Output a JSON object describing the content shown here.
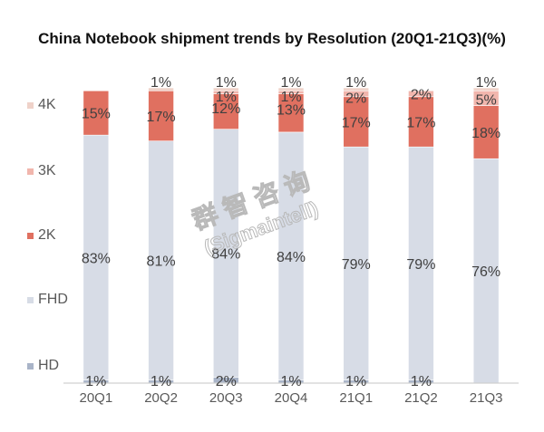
{
  "chart_data": {
    "type": "bar",
    "stacked": true,
    "title": "China Notebook shipment trends by Resolution (20Q1-21Q3)(%)",
    "xlabel": "",
    "ylabel": "",
    "ylim": [
      0,
      100
    ],
    "grid": false,
    "legend_position": "left",
    "categories": [
      "20Q1",
      "20Q2",
      "20Q3",
      "20Q4",
      "21Q1",
      "21Q2",
      "21Q3"
    ],
    "series": [
      {
        "name": "HD",
        "color": "#a9b4c8",
        "values": [
          1,
          1,
          2,
          1,
          1,
          1,
          0
        ]
      },
      {
        "name": "FHD",
        "color": "#d7dce6",
        "values": [
          83,
          81,
          84,
          84,
          79,
          79,
          76
        ]
      },
      {
        "name": "2K",
        "color": "#e07060",
        "values": [
          15,
          17,
          12,
          13,
          17,
          17,
          18
        ]
      },
      {
        "name": "3K",
        "color": "#f1b6ad",
        "values": [
          0,
          0,
          1,
          1,
          2,
          2,
          5
        ]
      },
      {
        "name": "4K",
        "color": "#efd2c9",
        "values": [
          0,
          1,
          1,
          1,
          1,
          0,
          1
        ]
      }
    ],
    "data_labels": [
      {
        "series": "HD",
        "labels": [
          "1%",
          "1%",
          "2%",
          "1%",
          "1%",
          "1%",
          ""
        ]
      },
      {
        "series": "FHD",
        "labels": [
          "83%",
          "81%",
          "84%",
          "84%",
          "79%",
          "79%",
          "76%"
        ]
      },
      {
        "series": "2K",
        "labels": [
          "15%",
          "17%",
          "12%",
          "13%",
          "17%",
          "17%",
          "18%"
        ]
      },
      {
        "series": "3K",
        "labels": [
          "",
          "",
          "1%",
          "1%",
          "2%",
          "2%",
          "5%"
        ]
      },
      {
        "series": "4K",
        "labels": [
          "",
          "1%",
          "1%",
          "1%",
          "1%",
          "",
          "1%"
        ]
      }
    ],
    "legend": [
      "4K",
      "3K",
      "2K",
      "FHD",
      "HD"
    ]
  },
  "watermark": {
    "line1": "群 智 咨 询",
    "line2": "(Sigmaintell)"
  }
}
